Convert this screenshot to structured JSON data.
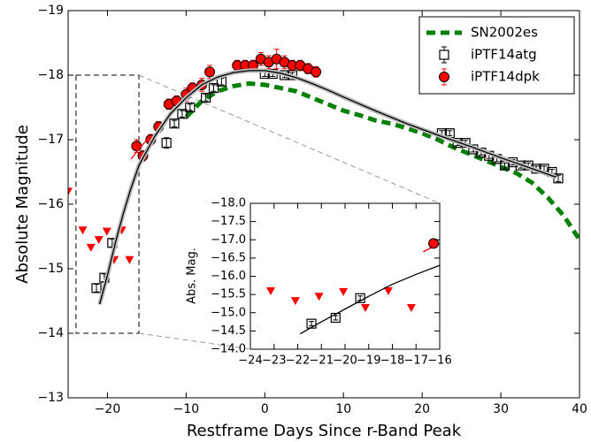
{
  "chart_data": [
    {
      "type": "scatter",
      "xlabel": "Restframe Days Since r-Band Peak",
      "ylabel": "Absolute Magnitude",
      "xlim": [
        -25,
        40
      ],
      "ylim": [
        -13,
        -19
      ],
      "xticks": [
        {
          "value": -20,
          "label": "−20"
        },
        {
          "value": -10,
          "label": "−10"
        },
        0,
        10,
        20,
        30,
        40
      ],
      "yticks": [
        {
          "value": -19,
          "label": "−19"
        },
        {
          "value": -18,
          "label": "−18"
        },
        {
          "value": -17,
          "label": "−17"
        },
        {
          "value": -16,
          "label": "−16"
        },
        {
          "value": -15,
          "label": "−15"
        },
        {
          "value": -14,
          "label": "−14"
        },
        {
          "value": -13,
          "label": "−13"
        }
      ],
      "legend": "upper right",
      "series": [
        {
          "name": "SN2002es",
          "color": "#008000",
          "style": "dashed",
          "x": [
            -10,
            -8,
            -6,
            -4,
            -2,
            0,
            2,
            4,
            6,
            8,
            10,
            12,
            14,
            16,
            18,
            20,
            22,
            24,
            26,
            28,
            30,
            32,
            34,
            36,
            38,
            40
          ],
          "values": [
            -17.35,
            -17.6,
            -17.75,
            -17.83,
            -17.87,
            -17.85,
            -17.8,
            -17.75,
            -17.65,
            -17.55,
            -17.45,
            -17.38,
            -17.3,
            -17.25,
            -17.18,
            -17.1,
            -17.0,
            -16.88,
            -16.78,
            -16.68,
            -16.58,
            -16.48,
            -16.33,
            -16.1,
            -15.82,
            -15.45
          ]
        },
        {
          "name": "iPTF14atg",
          "color": "#000000",
          "style": "square",
          "x": [
            -21.4,
            -20.4,
            -19.4,
            -12.5,
            -11.5,
            -10.5,
            -9.5,
            -7.5,
            -6.5,
            -5.5,
            0,
            1,
            2.5,
            3.5,
            22.5,
            23.5,
            24.5,
            25.5,
            26.5,
            27.5,
            28.5,
            29.5,
            30.5,
            31.5,
            32.5,
            33.5,
            34.5,
            35.5,
            36.5,
            37.3
          ],
          "values": [
            -14.7,
            -14.86,
            -15.4,
            -16.95,
            -17.25,
            -17.4,
            -17.5,
            -17.65,
            -17.8,
            -17.9,
            -18.02,
            -18.02,
            -18.0,
            -18.0,
            -17.1,
            -17.1,
            -16.95,
            -16.95,
            -16.85,
            -16.8,
            -16.75,
            -16.7,
            -16.6,
            -16.65,
            -16.6,
            -16.6,
            -16.55,
            -16.55,
            -16.5,
            -16.4
          ],
          "errors": [
            0.06,
            0.06,
            0.06,
            0.08,
            0.05,
            0.05,
            0.05,
            0.05,
            0.05,
            0.05,
            0.04,
            0.04,
            0.04,
            0.04,
            0.04,
            0.04,
            0.04,
            0.04,
            0.04,
            0.04,
            0.04,
            0.04,
            0.04,
            0.04,
            0.04,
            0.04,
            0.04,
            0.04,
            0.04,
            0.05
          ]
        },
        {
          "name": "iPTF14dpk",
          "color": "#ff0000",
          "style": "circle",
          "x": [
            -16.3,
            -15.5,
            -14.5,
            -13.5,
            -12.2,
            -11.2,
            -10,
            -9.2,
            -8,
            -7,
            -3.5,
            -2.5,
            -1.5,
            -0.5,
            0.5,
            1.5,
            2.5,
            3.5,
            4.5,
            5.5,
            6.5
          ],
          "values": [
            -16.9,
            -16.75,
            -17.0,
            -17.2,
            -17.55,
            -17.6,
            -17.7,
            -17.8,
            -17.85,
            -18.05,
            -18.15,
            -18.15,
            -18.15,
            -18.25,
            -18.2,
            -18.25,
            -18.2,
            -18.15,
            -18.15,
            -18.1,
            -18.05
          ],
          "errors": [
            0.1,
            0.08,
            0.08,
            0.08,
            0.08,
            0.08,
            0.1,
            0.08,
            0.1,
            0.1,
            0.08,
            0.08,
            0.08,
            0.1,
            0.1,
            0.15,
            0.1,
            0.08,
            0.08,
            0.08,
            0.08
          ]
        },
        {
          "color": "#ff0000",
          "style": "triangle",
          "x": [
            -25,
            -23.14,
            -22.1,
            -21.1,
            -20.07,
            -19.14,
            -18.17,
            -17.2
          ],
          "values": [
            -16.2,
            -15.6,
            -15.33,
            -15.45,
            -15.58,
            -15.14,
            -15.6,
            -15.14
          ]
        },
        {
          "color": "#000000",
          "style": "line",
          "x": [
            -21,
            -20,
            -19,
            -18,
            -17,
            -16,
            -14,
            -12,
            -10,
            -8,
            -6,
            -4,
            -2,
            0,
            2,
            4,
            6,
            8,
            10,
            14,
            18,
            22,
            26,
            30,
            34,
            37
          ],
          "values": [
            -14.45,
            -14.9,
            -15.4,
            -15.85,
            -16.25,
            -16.6,
            -17.05,
            -17.4,
            -17.65,
            -17.85,
            -17.97,
            -18.04,
            -18.07,
            -18.07,
            -18.03,
            -17.96,
            -17.87,
            -17.77,
            -17.66,
            -17.45,
            -17.25,
            -17.07,
            -16.9,
            -16.72,
            -16.55,
            -16.42
          ]
        },
        {
          "color": "#ff0000",
          "style": "line",
          "x": [
            -17,
            -15
          ],
          "values": [
            -16.7,
            -17.0
          ]
        }
      ]
    },
    {
      "type": "scatter",
      "ylabel": "Abs. Mag.",
      "xlim": [
        -24,
        -16
      ],
      "ylim": [
        -14,
        -18
      ],
      "xticks": [
        {
          "value": -24,
          "label": "−24"
        },
        {
          "value": -23,
          "label": "−23"
        },
        {
          "value": -22,
          "label": "−22"
        },
        {
          "value": -21,
          "label": "−21"
        },
        {
          "value": -20,
          "label": "−20"
        },
        {
          "value": -19,
          "label": "−19"
        },
        {
          "value": -18,
          "label": "−18"
        },
        {
          "value": -17,
          "label": "−17"
        },
        {
          "value": -16,
          "label": "−16"
        }
      ],
      "yticks": [
        {
          "value": -18,
          "label": "−18.0"
        },
        {
          "value": -17.5,
          "label": "−17.5"
        },
        {
          "value": -17,
          "label": "−17.0"
        },
        {
          "value": -16.5,
          "label": "−16.5"
        },
        {
          "value": -16,
          "label": "−16.0"
        },
        {
          "value": -15.5,
          "label": "−15.5"
        },
        {
          "value": -15,
          "label": "−15.0"
        },
        {
          "value": -14.5,
          "label": "−14.5"
        },
        {
          "value": -14,
          "label": "−14.0"
        }
      ],
      "series": [
        {
          "color": "#ff0000",
          "style": "triangle",
          "x": [
            -23.14,
            -22.1,
            -21.1,
            -20.07,
            -19.14,
            -18.17,
            -17.2
          ],
          "values": [
            -15.6,
            -15.33,
            -15.45,
            -15.58,
            -15.14,
            -15.6,
            -15.14
          ]
        },
        {
          "color": "#000000",
          "style": "line",
          "x": [
            -21.9,
            -21,
            -20,
            -19,
            -18,
            -17,
            -16
          ],
          "values": [
            -14.42,
            -14.75,
            -15.1,
            -15.45,
            -15.78,
            -16.05,
            -16.3
          ]
        },
        {
          "color": "#ff0000",
          "style": "line",
          "x": [
            -16.7,
            -16
          ],
          "values": [
            -16.67,
            -16.9
          ]
        },
        {
          "color": "#000000",
          "style": "square",
          "x": [
            -21.42,
            -20.4,
            -19.36
          ],
          "values": [
            -14.7,
            -14.86,
            -15.4
          ],
          "errors": [
            0.06,
            0.06,
            0.06
          ]
        },
        {
          "color": "#ff0000",
          "style": "circle",
          "x": [
            -16.26
          ],
          "values": [
            -16.9
          ],
          "errors": [
            0.1
          ]
        }
      ]
    }
  ]
}
